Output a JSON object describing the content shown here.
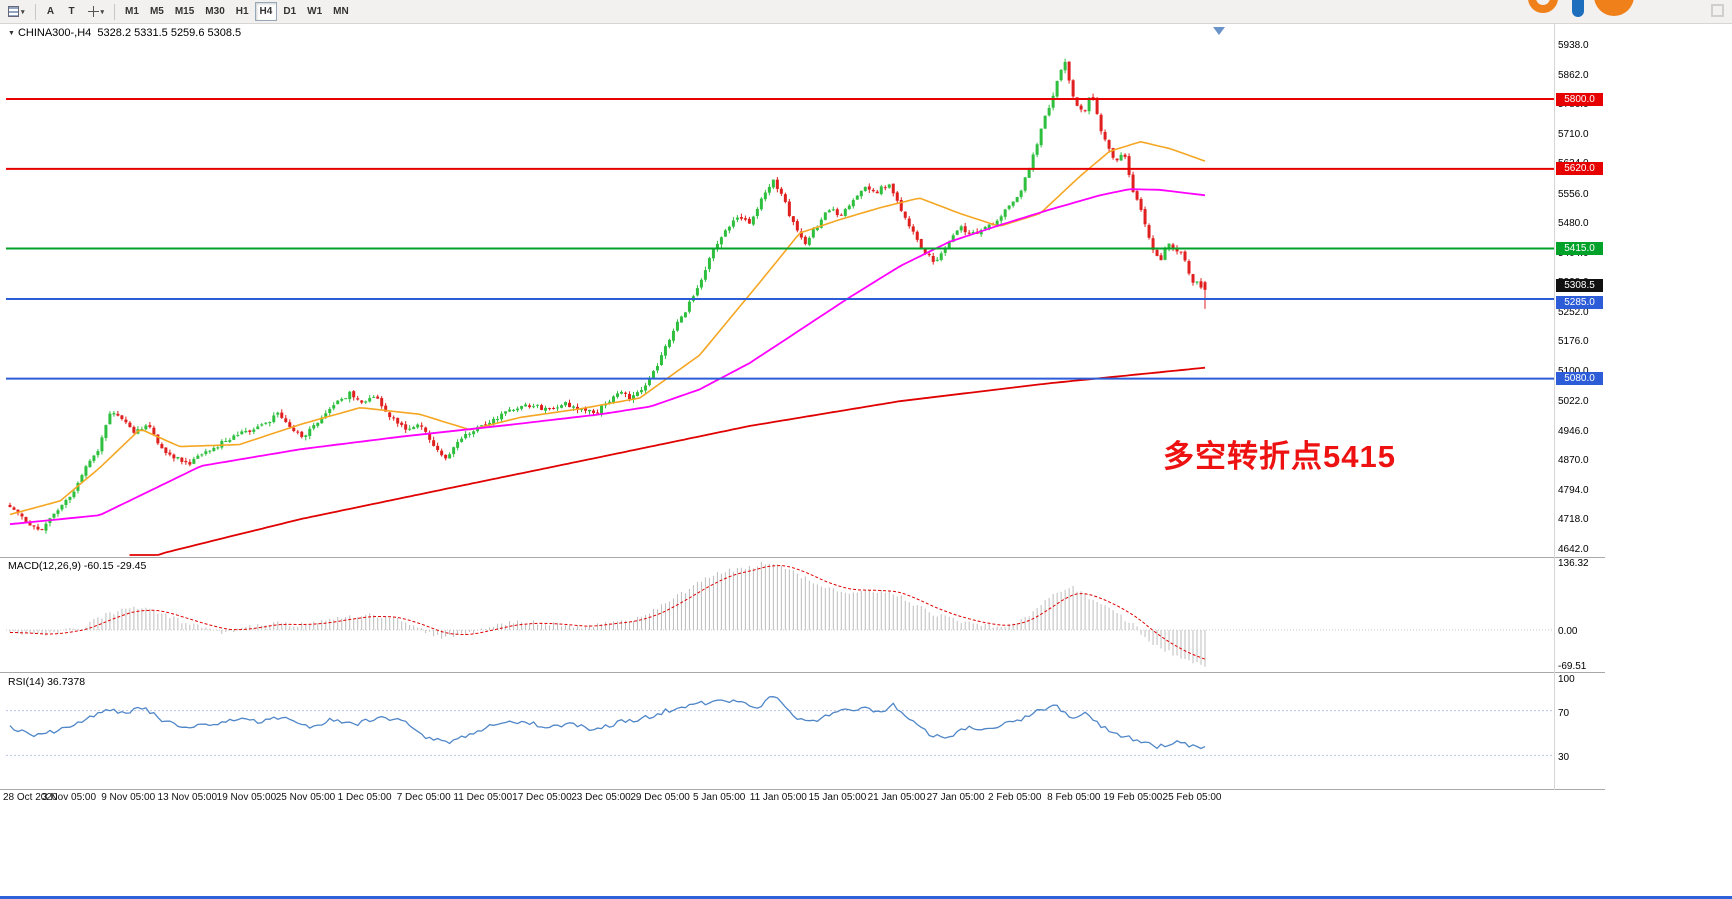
{
  "toolbar": {
    "tools": [
      {
        "name": "charts-grid-button",
        "icon": "rows-icon",
        "has_caret": true
      },
      {
        "name": "cursor-tool-button",
        "label": "A"
      },
      {
        "name": "text-tool-button",
        "label": "T"
      },
      {
        "name": "draw-tools-button",
        "icon": "crosshair-icon",
        "has_caret": true
      }
    ],
    "timeframes": [
      "M1",
      "M5",
      "M15",
      "M30",
      "H1",
      "H4",
      "D1",
      "W1",
      "MN"
    ],
    "active_timeframe": "H4"
  },
  "chart_data": [
    {
      "type": "candlestick",
      "symbol": "CHINA300-",
      "timeframe": "H4",
      "symbol_display": "CHINA300-,H4",
      "ohlc_display": "5328.2 5331.5 5259.6 5308.5",
      "last_ohlc": {
        "open": 5328.2,
        "high": 5331.5,
        "low": 5259.6,
        "close": 5308.5
      },
      "up_color": "#2fbf3f",
      "down_color": "#e01f1f",
      "y_axis_range": [
        4623,
        5952
      ],
      "y_tick_labels": [
        "5938.0",
        "5862.0",
        "5786.0",
        "5710.0",
        "5634.0",
        "5556.0",
        "5480.0",
        "5404.0",
        "5328.0",
        "5252.0",
        "5176.0",
        "5100.0",
        "5022.0",
        "4946.0",
        "4870.0",
        "4794.0",
        "4718.0",
        "4642.0"
      ],
      "x_tick_labels": [
        "28 Oct 2020",
        "3 Nov 05:00",
        "9 Nov 05:00",
        "13 Nov 05:00",
        "19 Nov 05:00",
        "25 Nov 05:00",
        "1 Dec 05:00",
        "7 Dec 05:00",
        "11 Dec 05:00",
        "17 Dec 05:00",
        "23 Dec 05:00",
        "29 Dec 05:00",
        "5 Jan 05:00",
        "11 Jan 05:00",
        "15 Jan 05:00",
        "21 Jan 05:00",
        "27 Jan 05:00",
        "2 Feb 05:00",
        "8 Feb 05:00",
        "19 Feb 05:00",
        "25 Feb 05:00"
      ],
      "hlines": [
        {
          "price": 5800,
          "label": "5800.0",
          "color": "#e60000"
        },
        {
          "price": 5620,
          "label": "5620.0",
          "color": "#e60000"
        },
        {
          "price": 5415,
          "label": "5415.0",
          "color": "#00a22a"
        },
        {
          "price": 5285,
          "label": "5285.0",
          "color": "#2c5cd8",
          "badge_dy": 4
        },
        {
          "price": 5080,
          "label": "5080.0",
          "color": "#2c5cd8"
        }
      ],
      "current_price_badge": {
        "price": 5308.5,
        "label": "5308.5",
        "color": "#111111",
        "badge_dy": -4
      },
      "annotation": {
        "text": "多空转折点5415",
        "color": "#ee1111"
      },
      "approx_bar_count": 300,
      "price_path_anchors": [
        [
          0,
          4755
        ],
        [
          0.01,
          4720
        ],
        [
          0.025,
          4690
        ],
        [
          0.04,
          4740
        ],
        [
          0.055,
          4800
        ],
        [
          0.065,
          4860
        ],
        [
          0.075,
          4905
        ],
        [
          0.085,
          5000
        ],
        [
          0.095,
          4975
        ],
        [
          0.105,
          4940
        ],
        [
          0.115,
          4962
        ],
        [
          0.125,
          4905
        ],
        [
          0.135,
          4880
        ],
        [
          0.15,
          4862
        ],
        [
          0.165,
          4890
        ],
        [
          0.18,
          4920
        ],
        [
          0.195,
          4940
        ],
        [
          0.21,
          4955
        ],
        [
          0.225,
          4990
        ],
        [
          0.235,
          4950
        ],
        [
          0.245,
          4930
        ],
        [
          0.255,
          4960
        ],
        [
          0.27,
          5010
        ],
        [
          0.285,
          5042
        ],
        [
          0.295,
          5020
        ],
        [
          0.305,
          5040
        ],
        [
          0.315,
          4990
        ],
        [
          0.33,
          4950
        ],
        [
          0.345,
          4962
        ],
        [
          0.355,
          4900
        ],
        [
          0.365,
          4872
        ],
        [
          0.375,
          4920
        ],
        [
          0.39,
          4950
        ],
        [
          0.405,
          4975
        ],
        [
          0.42,
          5000
        ],
        [
          0.435,
          5012
        ],
        [
          0.45,
          5000
        ],
        [
          0.465,
          5015
        ],
        [
          0.48,
          5000
        ],
        [
          0.49,
          4990
        ],
        [
          0.5,
          5022
        ],
        [
          0.51,
          5042
        ],
        [
          0.52,
          5030
        ],
        [
          0.53,
          5060
        ],
        [
          0.54,
          5100
        ],
        [
          0.55,
          5170
        ],
        [
          0.56,
          5230
        ],
        [
          0.57,
          5280
        ],
        [
          0.58,
          5350
        ],
        [
          0.59,
          5420
        ],
        [
          0.6,
          5470
        ],
        [
          0.61,
          5500
        ],
        [
          0.62,
          5480
        ],
        [
          0.63,
          5550
        ],
        [
          0.638,
          5592
        ],
        [
          0.645,
          5560
        ],
        [
          0.655,
          5480
        ],
        [
          0.665,
          5430
        ],
        [
          0.675,
          5470
        ],
        [
          0.685,
          5520
        ],
        [
          0.695,
          5500
        ],
        [
          0.705,
          5540
        ],
        [
          0.715,
          5572
        ],
        [
          0.725,
          5560
        ],
        [
          0.735,
          5582
        ],
        [
          0.745,
          5520
        ],
        [
          0.755,
          5460
        ],
        [
          0.765,
          5400
        ],
        [
          0.775,
          5382
        ],
        [
          0.785,
          5430
        ],
        [
          0.795,
          5470
        ],
        [
          0.805,
          5450
        ],
        [
          0.815,
          5470
        ],
        [
          0.825,
          5482
        ],
        [
          0.835,
          5520
        ],
        [
          0.845,
          5560
        ],
        [
          0.855,
          5640
        ],
        [
          0.865,
          5740
        ],
        [
          0.875,
          5830
        ],
        [
          0.882,
          5902
        ],
        [
          0.89,
          5800
        ],
        [
          0.898,
          5762
        ],
        [
          0.905,
          5812
        ],
        [
          0.915,
          5700
        ],
        [
          0.925,
          5642
        ],
        [
          0.932,
          5660
        ],
        [
          0.94,
          5560
        ],
        [
          0.948,
          5502
        ],
        [
          0.955,
          5422
        ],
        [
          0.962,
          5382
        ],
        [
          0.97,
          5432
        ],
        [
          0.98,
          5402
        ],
        [
          0.99,
          5332
        ],
        [
          1,
          5308.5
        ]
      ],
      "moving_averages": [
        {
          "name": "fast-ma",
          "color": "#f5a623",
          "width": 1.6,
          "anchors": [
            [
              0,
              4730
            ],
            [
              0.042,
              4765
            ],
            [
              0.075,
              4850
            ],
            [
              0.109,
              4950
            ],
            [
              0.142,
              4905
            ],
            [
              0.192,
              4910
            ],
            [
              0.243,
              4962
            ],
            [
              0.293,
              5005
            ],
            [
              0.343,
              4988
            ],
            [
              0.385,
              4948
            ],
            [
              0.427,
              4980
            ],
            [
              0.477,
              5002
            ],
            [
              0.527,
              5030
            ],
            [
              0.577,
              5140
            ],
            [
              0.628,
              5330
            ],
            [
              0.661,
              5455
            ],
            [
              0.695,
              5490
            ],
            [
              0.728,
              5520
            ],
            [
              0.761,
              5545
            ],
            [
              0.795,
              5505
            ],
            [
              0.828,
              5472
            ],
            [
              0.862,
              5505
            ],
            [
              0.895,
              5600
            ],
            [
              0.92,
              5665
            ],
            [
              0.946,
              5690
            ],
            [
              0.971,
              5672
            ],
            [
              1,
              5640
            ]
          ]
        },
        {
          "name": "mid-ma",
          "color": "#ff00ff",
          "width": 1.8,
          "anchors": [
            [
              0,
              4705
            ],
            [
              0.075,
              4728
            ],
            [
              0.16,
              4855
            ],
            [
              0.243,
              4898
            ],
            [
              0.326,
              4930
            ],
            [
              0.41,
              4958
            ],
            [
              0.494,
              4988
            ],
            [
              0.536,
              5008
            ],
            [
              0.577,
              5052
            ],
            [
              0.619,
              5120
            ],
            [
              0.661,
              5205
            ],
            [
              0.703,
              5290
            ],
            [
              0.745,
              5370
            ],
            [
              0.786,
              5432
            ],
            [
              0.828,
              5475
            ],
            [
              0.87,
              5515
            ],
            [
              0.912,
              5552
            ],
            [
              0.937,
              5568
            ],
            [
              0.962,
              5566
            ],
            [
              1,
              5552
            ]
          ]
        },
        {
          "name": "slow-ma",
          "color": "#e00000",
          "width": 1.8,
          "anchors": [
            [
              0.1,
              4600
            ],
            [
              0.13,
              4632
            ],
            [
              0.243,
              4718
            ],
            [
              0.368,
              4798
            ],
            [
              0.494,
              4878
            ],
            [
              0.619,
              4958
            ],
            [
              0.745,
              5022
            ],
            [
              0.87,
              5068
            ],
            [
              1,
              5108
            ]
          ]
        }
      ]
    },
    {
      "type": "macd",
      "label": "MACD(12,26,9) -60.15 -29.45",
      "params": [
        12,
        26,
        9
      ],
      "current_macd": -60.15,
      "current_signal": -29.45,
      "y_tick_labels": [
        "136.32",
        "0.00",
        "-69.51"
      ],
      "histogram_color": "#bcbcbc",
      "signal_color": "#e00000",
      "anchors": [
        [
          0,
          -5
        ],
        [
          0.03,
          -10
        ],
        [
          0.06,
          5
        ],
        [
          0.08,
          30
        ],
        [
          0.1,
          45
        ],
        [
          0.12,
          40
        ],
        [
          0.14,
          20
        ],
        [
          0.16,
          5
        ],
        [
          0.18,
          -5
        ],
        [
          0.2,
          5
        ],
        [
          0.22,
          15
        ],
        [
          0.24,
          10
        ],
        [
          0.26,
          15
        ],
        [
          0.28,
          25
        ],
        [
          0.3,
          30
        ],
        [
          0.32,
          25
        ],
        [
          0.34,
          5
        ],
        [
          0.36,
          -15
        ],
        [
          0.38,
          -10
        ],
        [
          0.4,
          5
        ],
        [
          0.42,
          15
        ],
        [
          0.44,
          15
        ],
        [
          0.46,
          10
        ],
        [
          0.48,
          5
        ],
        [
          0.5,
          15
        ],
        [
          0.52,
          20
        ],
        [
          0.54,
          40
        ],
        [
          0.56,
          70
        ],
        [
          0.58,
          100
        ],
        [
          0.6,
          120
        ],
        [
          0.62,
          125
        ],
        [
          0.63,
          135
        ],
        [
          0.645,
          130
        ],
        [
          0.66,
          110
        ],
        [
          0.68,
          85
        ],
        [
          0.7,
          75
        ],
        [
          0.72,
          80
        ],
        [
          0.74,
          75
        ],
        [
          0.75,
          60
        ],
        [
          0.77,
          35
        ],
        [
          0.79,
          20
        ],
        [
          0.81,
          10
        ],
        [
          0.83,
          5
        ],
        [
          0.85,
          25
        ],
        [
          0.865,
          55
        ],
        [
          0.88,
          80
        ],
        [
          0.89,
          85
        ],
        [
          0.9,
          70
        ],
        [
          0.91,
          55
        ],
        [
          0.925,
          35
        ],
        [
          0.94,
          10
        ],
        [
          0.955,
          -25
        ],
        [
          0.97,
          -45
        ],
        [
          0.985,
          -60
        ],
        [
          1,
          -70
        ]
      ]
    },
    {
      "type": "rsi",
      "label": "RSI(14) 36.7378",
      "period": 14,
      "current_value": 36.7378,
      "levels": [
        70,
        30
      ],
      "y_tick_labels": [
        "100",
        "70",
        "30"
      ],
      "line_color": "#4f86c8",
      "anchors": [
        [
          0,
          55
        ],
        [
          0.02,
          48
        ],
        [
          0.04,
          52
        ],
        [
          0.06,
          60
        ],
        [
          0.08,
          72
        ],
        [
          0.095,
          68
        ],
        [
          0.11,
          73
        ],
        [
          0.13,
          60
        ],
        [
          0.15,
          55
        ],
        [
          0.17,
          58
        ],
        [
          0.19,
          62
        ],
        [
          0.21,
          60
        ],
        [
          0.23,
          65
        ],
        [
          0.25,
          55
        ],
        [
          0.27,
          62
        ],
        [
          0.29,
          58
        ],
        [
          0.31,
          65
        ],
        [
          0.33,
          60
        ],
        [
          0.35,
          45
        ],
        [
          0.37,
          42
        ],
        [
          0.39,
          52
        ],
        [
          0.41,
          58
        ],
        [
          0.43,
          60
        ],
        [
          0.45,
          55
        ],
        [
          0.47,
          58
        ],
        [
          0.49,
          52
        ],
        [
          0.51,
          60
        ],
        [
          0.53,
          63
        ],
        [
          0.55,
          70
        ],
        [
          0.57,
          75
        ],
        [
          0.59,
          78
        ],
        [
          0.61,
          80
        ],
        [
          0.625,
          72
        ],
        [
          0.64,
          85
        ],
        [
          0.655,
          65
        ],
        [
          0.67,
          60
        ],
        [
          0.69,
          68
        ],
        [
          0.71,
          72
        ],
        [
          0.73,
          70
        ],
        [
          0.74,
          75
        ],
        [
          0.755,
          60
        ],
        [
          0.77,
          48
        ],
        [
          0.785,
          45
        ],
        [
          0.8,
          55
        ],
        [
          0.815,
          52
        ],
        [
          0.83,
          58
        ],
        [
          0.845,
          62
        ],
        [
          0.86,
          70
        ],
        [
          0.875,
          75
        ],
        [
          0.89,
          62
        ],
        [
          0.9,
          68
        ],
        [
          0.915,
          55
        ],
        [
          0.93,
          48
        ],
        [
          0.945,
          42
        ],
        [
          0.96,
          38
        ],
        [
          0.975,
          42
        ],
        [
          0.99,
          38
        ],
        [
          1,
          36.7
        ]
      ]
    }
  ]
}
